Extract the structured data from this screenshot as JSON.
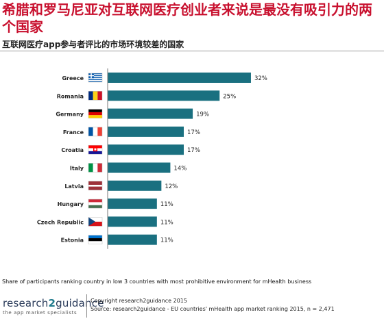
{
  "headline": "希腊和罗马尼亚对互联网医疗创业者来说是最没有吸引力的两个国家",
  "subtitle": "互联网医疗app参与者评比的市场环境较差的国家",
  "chart_data": {
    "type": "bar",
    "orientation": "horizontal",
    "categories": [
      "Greece",
      "Romania",
      "Germany",
      "France",
      "Croatia",
      "Italy",
      "Latvia",
      "Hungary",
      "Czech Republic",
      "Estonia"
    ],
    "values": [
      32,
      25,
      19,
      17,
      17,
      14,
      12,
      11,
      11,
      11
    ],
    "data_labels": [
      "32%",
      "25%",
      "19%",
      "17%",
      "17%",
      "14%",
      "12%",
      "11%",
      "11%",
      "11%"
    ],
    "flags": [
      "greece-flag-icon",
      "romania-flag-icon",
      "germany-flag-icon",
      "france-flag-icon",
      "croatia-flag-icon",
      "italy-flag-icon",
      "latvia-flag-icon",
      "hungary-flag-icon",
      "czech-republic-flag-icon",
      "estonia-flag-icon"
    ],
    "bar_color": "#1a7080",
    "xlim": [
      0,
      35
    ],
    "grid": false
  },
  "footnote": "Share of participants ranking country in low 3 countries with most prohibitive environment for mHealth business",
  "logo": {
    "brand_prefix": "research",
    "brand_accent": "2",
    "brand_suffix": "guidance",
    "tagline": "the app market specialists"
  },
  "credits": {
    "copyright": "Copyright research2guidance 2015",
    "source": "Source: research2guidance - EU countries' mHealth app market ranking 2015, n = 2,471"
  }
}
